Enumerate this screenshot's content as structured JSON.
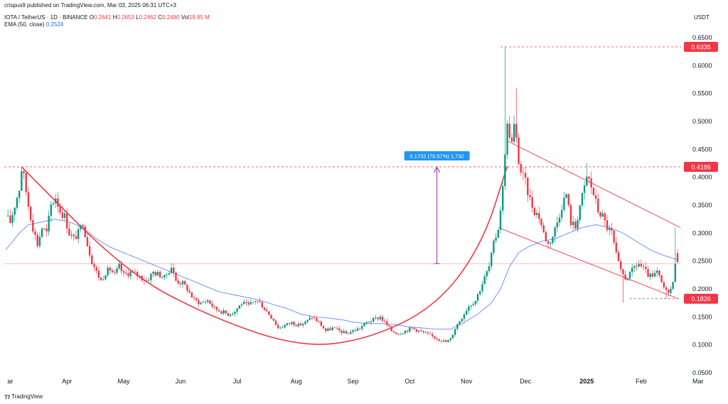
{
  "header": {
    "published": "crispus9 published on TradingView.com, Mar 03, 2025 06:31 UTC+3",
    "symbol": "IOTA / TetherUS · 1D · BINANCE",
    "ohlc": [
      {
        "k": "O",
        "v": "0.2641"
      },
      {
        "k": "H",
        "v": "0.2653"
      },
      {
        "k": "L",
        "v": "0.2462"
      },
      {
        "k": "C",
        "v": "0.2480"
      },
      {
        "k": "Vol",
        "v": "18.85 M"
      }
    ],
    "ema_label": "EMA (50, close)",
    "ema_value": "0.2524",
    "currency": "USDT"
  },
  "watermark": "TradingView",
  "colors": {
    "up": "#089981",
    "down": "#f23645",
    "ema": "#2962ff",
    "pattern": "#f23645",
    "measure": "#9c27b0",
    "measure_label_bg": "#2196f3"
  },
  "chart_data": {
    "type": "candlestick",
    "x_labels": [
      "ar",
      "Apr",
      "May",
      "Jun",
      "Jul",
      "Aug",
      "Sep",
      "Oct",
      "Nov",
      "Dec",
      "2025",
      "Feb",
      "Mar"
    ],
    "y_ticks": [
      "0.6500",
      "0.6000",
      "0.5500",
      "0.5000",
      "0.4500",
      "0.4000",
      "0.3500",
      "0.3000",
      "0.2500",
      "0.2000",
      "0.1500",
      "0.1000",
      "0.0500"
    ],
    "ylim": [
      0.05,
      0.65
    ],
    "price_markers": [
      {
        "label": "0.6335",
        "value": 0.6335
      },
      {
        "label": "0.4186",
        "value": 0.4186
      },
      {
        "label": "0.1826",
        "value": 0.1826
      }
    ],
    "measure": {
      "label": "0.1732 (70.57%) 1,732",
      "from": 0.2454,
      "to": 0.4186
    },
    "current_price": 0.248,
    "close_path": [
      [
        0,
        0.33
      ],
      [
        2,
        0.32
      ],
      [
        4,
        0.35
      ],
      [
        6,
        0.38
      ],
      [
        7,
        0.415
      ],
      [
        8,
        0.4
      ],
      [
        10,
        0.35
      ],
      [
        12,
        0.31
      ],
      [
        14,
        0.28
      ],
      [
        16,
        0.31
      ],
      [
        18,
        0.3
      ],
      [
        20,
        0.35
      ],
      [
        22,
        0.365
      ],
      [
        24,
        0.34
      ],
      [
        26,
        0.33
      ],
      [
        28,
        0.3
      ],
      [
        30,
        0.29
      ],
      [
        32,
        0.3
      ],
      [
        34,
        0.32
      ],
      [
        36,
        0.28
      ],
      [
        38,
        0.25
      ],
      [
        40,
        0.23
      ],
      [
        42,
        0.215
      ],
      [
        44,
        0.23
      ],
      [
        46,
        0.235
      ],
      [
        48,
        0.225
      ],
      [
        50,
        0.24
      ],
      [
        52,
        0.225
      ],
      [
        55,
        0.23
      ],
      [
        58,
        0.225
      ],
      [
        62,
        0.215
      ],
      [
        65,
        0.23
      ],
      [
        68,
        0.225
      ],
      [
        70,
        0.22
      ],
      [
        73,
        0.24
      ],
      [
        75,
        0.215
      ],
      [
        78,
        0.21
      ],
      [
        80,
        0.2
      ],
      [
        83,
        0.18
      ],
      [
        86,
        0.175
      ],
      [
        89,
        0.18
      ],
      [
        92,
        0.165
      ],
      [
        95,
        0.16
      ],
      [
        98,
        0.155
      ],
      [
        101,
        0.16
      ],
      [
        104,
        0.175
      ],
      [
        107,
        0.17
      ],
      [
        110,
        0.18
      ],
      [
        112,
        0.175
      ],
      [
        115,
        0.16
      ],
      [
        118,
        0.145
      ],
      [
        120,
        0.13
      ],
      [
        123,
        0.135
      ],
      [
        126,
        0.14
      ],
      [
        129,
        0.135
      ],
      [
        132,
        0.14
      ],
      [
        135,
        0.15
      ],
      [
        138,
        0.14
      ],
      [
        141,
        0.125
      ],
      [
        144,
        0.13
      ],
      [
        147,
        0.125
      ],
      [
        150,
        0.12
      ],
      [
        153,
        0.125
      ],
      [
        156,
        0.13
      ],
      [
        159,
        0.14
      ],
      [
        162,
        0.145
      ],
      [
        165,
        0.15
      ],
      [
        167,
        0.14
      ],
      [
        170,
        0.125
      ],
      [
        173,
        0.12
      ],
      [
        176,
        0.125
      ],
      [
        179,
        0.13
      ],
      [
        182,
        0.125
      ],
      [
        185,
        0.12
      ],
      [
        188,
        0.115
      ],
      [
        191,
        0.11
      ],
      [
        194,
        0.105
      ],
      [
        196,
        0.11
      ],
      [
        198,
        0.13
      ],
      [
        201,
        0.15
      ],
      [
        204,
        0.17
      ],
      [
        207,
        0.18
      ],
      [
        210,
        0.21
      ],
      [
        213,
        0.24
      ],
      [
        215,
        0.28
      ],
      [
        217,
        0.31
      ],
      [
        219,
        0.38
      ],
      [
        220,
        0.45
      ],
      [
        221,
        0.49
      ],
      [
        222,
        0.48
      ],
      [
        223,
        0.46
      ],
      [
        224,
        0.49
      ],
      [
        225,
        0.465
      ],
      [
        226,
        0.43
      ],
      [
        227,
        0.41
      ],
      [
        229,
        0.39
      ],
      [
        231,
        0.36
      ],
      [
        233,
        0.34
      ],
      [
        235,
        0.33
      ],
      [
        237,
        0.3
      ],
      [
        239,
        0.28
      ],
      [
        241,
        0.295
      ],
      [
        243,
        0.32
      ],
      [
        245,
        0.35
      ],
      [
        247,
        0.37
      ],
      [
        249,
        0.32
      ],
      [
        251,
        0.31
      ],
      [
        253,
        0.35
      ],
      [
        255,
        0.38
      ],
      [
        256,
        0.4
      ],
      [
        257,
        0.395
      ],
      [
        259,
        0.37
      ],
      [
        261,
        0.34
      ],
      [
        263,
        0.33
      ],
      [
        265,
        0.31
      ],
      [
        267,
        0.3
      ],
      [
        269,
        0.26
      ],
      [
        271,
        0.23
      ],
      [
        273,
        0.22
      ],
      [
        275,
        0.225
      ],
      [
        277,
        0.24
      ],
      [
        279,
        0.245
      ],
      [
        281,
        0.235
      ],
      [
        283,
        0.225
      ],
      [
        285,
        0.22
      ],
      [
        287,
        0.23
      ],
      [
        289,
        0.21
      ],
      [
        291,
        0.195
      ],
      [
        293,
        0.2
      ],
      [
        294,
        0.21
      ],
      [
        295,
        0.25
      ],
      [
        296,
        0.248
      ]
    ],
    "ema_path": [
      [
        0,
        0.27
      ],
      [
        6,
        0.3
      ],
      [
        10,
        0.315
      ],
      [
        16,
        0.32
      ],
      [
        22,
        0.325
      ],
      [
        28,
        0.32
      ],
      [
        34,
        0.31
      ],
      [
        40,
        0.29
      ],
      [
        46,
        0.275
      ],
      [
        52,
        0.265
      ],
      [
        58,
        0.255
      ],
      [
        64,
        0.245
      ],
      [
        70,
        0.235
      ],
      [
        76,
        0.225
      ],
      [
        82,
        0.215
      ],
      [
        88,
        0.205
      ],
      [
        94,
        0.195
      ],
      [
        100,
        0.19
      ],
      [
        106,
        0.185
      ],
      [
        112,
        0.18
      ],
      [
        118,
        0.172
      ],
      [
        124,
        0.165
      ],
      [
        130,
        0.155
      ],
      [
        136,
        0.15
      ],
      [
        142,
        0.148
      ],
      [
        148,
        0.145
      ],
      [
        154,
        0.14
      ],
      [
        160,
        0.138
      ],
      [
        166,
        0.138
      ],
      [
        172,
        0.136
      ],
      [
        178,
        0.132
      ],
      [
        184,
        0.13
      ],
      [
        190,
        0.128
      ],
      [
        196,
        0.128
      ],
      [
        202,
        0.14
      ],
      [
        208,
        0.155
      ],
      [
        214,
        0.175
      ],
      [
        218,
        0.2
      ],
      [
        222,
        0.24
      ],
      [
        226,
        0.265
      ],
      [
        230,
        0.275
      ],
      [
        236,
        0.285
      ],
      [
        242,
        0.29
      ],
      [
        248,
        0.3
      ],
      [
        254,
        0.31
      ],
      [
        260,
        0.315
      ],
      [
        266,
        0.31
      ],
      [
        272,
        0.3
      ],
      [
        278,
        0.285
      ],
      [
        284,
        0.27
      ],
      [
        290,
        0.26
      ],
      [
        296,
        0.2524
      ]
    ],
    "drawings": {
      "cup_curve": [
        [
          7,
          0.4186
        ],
        [
          53,
          0.23
        ],
        [
          90,
          0.15
        ],
        [
          130,
          0.095
        ],
        [
          160,
          0.11
        ],
        [
          190,
          0.17
        ],
        [
          210,
          0.28
        ],
        [
          221,
          0.42
        ]
      ],
      "h_line_top": 0.4186,
      "h_line_peak": 0.6335,
      "h_line_current": 0.2454,
      "h_line_low": 0.1826,
      "channel_upper": [
        [
          221,
          0.465
        ],
        [
          296,
          0.31
        ]
      ],
      "channel_lower": [
        [
          217,
          0.31
        ],
        [
          296,
          0.183
        ]
      ]
    }
  }
}
